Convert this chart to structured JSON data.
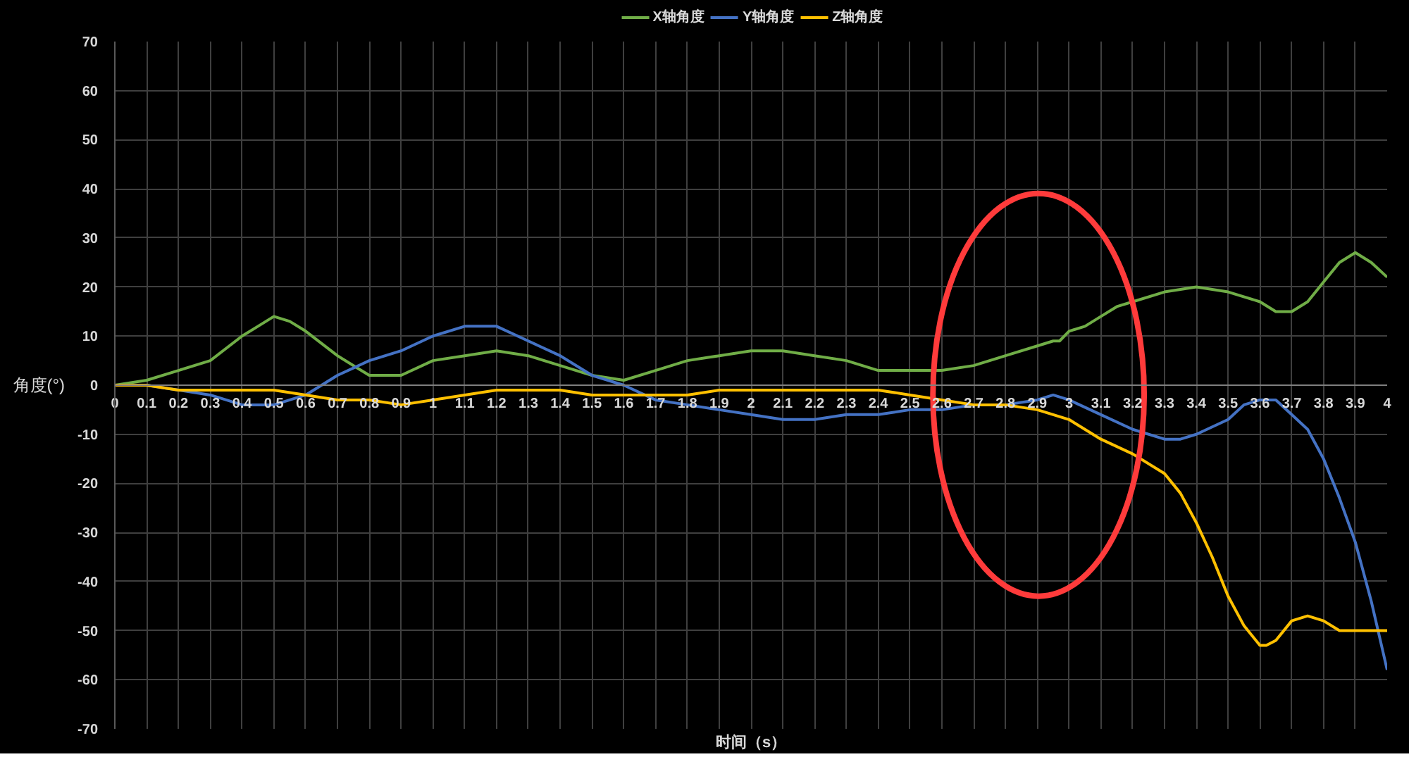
{
  "chart_data": {
    "type": "line",
    "xlabel": "时间（s）",
    "ylabel": "角度(°)",
    "xlim": [
      0,
      4
    ],
    "ylim": [
      -70,
      70
    ],
    "xticks": [
      0,
      0.1,
      0.2,
      0.3,
      0.4,
      0.5,
      0.6,
      0.7,
      0.8,
      0.9,
      1,
      1.1,
      1.2,
      1.3,
      1.4,
      1.5,
      1.6,
      1.7,
      1.8,
      1.9,
      2,
      2.1,
      2.2,
      2.3,
      2.4,
      2.5,
      2.6,
      2.7,
      2.8,
      2.9,
      3,
      3.1,
      3.2,
      3.3,
      3.4,
      3.5,
      3.6,
      3.7,
      3.8,
      3.9,
      4
    ],
    "yticks": [
      -70,
      -60,
      -50,
      -40,
      -30,
      -20,
      -10,
      0,
      10,
      20,
      30,
      40,
      50,
      60,
      70
    ],
    "grid": true,
    "legend": "top",
    "marker": "none",
    "line_style": "solid",
    "series": [
      {
        "name": "X轴角度",
        "color": "#70ad47",
        "x": [
          0,
          0.1,
          0.2,
          0.3,
          0.4,
          0.45,
          0.5,
          0.55,
          0.6,
          0.7,
          0.8,
          0.9,
          1,
          1.1,
          1.2,
          1.3,
          1.4,
          1.5,
          1.6,
          1.7,
          1.8,
          1.9,
          2,
          2.1,
          2.2,
          2.3,
          2.4,
          2.5,
          2.6,
          2.7,
          2.8,
          2.9,
          2.95,
          2.97,
          3,
          3.05,
          3.1,
          3.15,
          3.2,
          3.3,
          3.4,
          3.5,
          3.6,
          3.65,
          3.7,
          3.75,
          3.8,
          3.85,
          3.9,
          3.95,
          4
        ],
        "values": [
          0,
          1,
          3,
          5,
          10,
          12,
          14,
          13,
          11,
          6,
          2,
          2,
          5,
          6,
          7,
          6,
          4,
          2,
          1,
          3,
          5,
          6,
          7,
          7,
          6,
          5,
          3,
          3,
          3,
          4,
          6,
          8,
          9,
          9,
          11,
          12,
          14,
          16,
          17,
          19,
          20,
          19,
          17,
          15,
          15,
          17,
          21,
          25,
          27,
          25,
          22
        ]
      },
      {
        "name": "Y轴角度",
        "color": "#4472c4",
        "x": [
          0,
          0.1,
          0.2,
          0.3,
          0.4,
          0.5,
          0.6,
          0.7,
          0.8,
          0.9,
          1,
          1.1,
          1.15,
          1.2,
          1.3,
          1.4,
          1.5,
          1.6,
          1.7,
          1.8,
          1.9,
          2,
          2.1,
          2.2,
          2.3,
          2.4,
          2.5,
          2.6,
          2.7,
          2.8,
          2.9,
          2.95,
          3,
          3.1,
          3.2,
          3.3,
          3.35,
          3.4,
          3.5,
          3.55,
          3.6,
          3.65,
          3.7,
          3.75,
          3.8,
          3.85,
          3.9,
          3.95,
          4
        ],
        "values": [
          0,
          0,
          -1,
          -2,
          -4,
          -4,
          -2,
          2,
          5,
          7,
          10,
          12,
          12,
          12,
          9,
          6,
          2,
          0,
          -3,
          -4,
          -5,
          -6,
          -7,
          -7,
          -6,
          -6,
          -5,
          -5,
          -4,
          -4,
          -3,
          -2,
          -3,
          -6,
          -9,
          -11,
          -11,
          -10,
          -7,
          -4,
          -3,
          -3,
          -6,
          -9,
          -15,
          -23,
          -32,
          -44,
          -58
        ]
      },
      {
        "name": "Z轴角度",
        "color": "#ffc000",
        "x": [
          0,
          0.1,
          0.2,
          0.3,
          0.4,
          0.5,
          0.6,
          0.7,
          0.8,
          0.9,
          1,
          1.1,
          1.2,
          1.3,
          1.4,
          1.5,
          1.6,
          1.7,
          1.8,
          1.9,
          2,
          2.1,
          2.2,
          2.3,
          2.4,
          2.5,
          2.6,
          2.7,
          2.8,
          2.9,
          3,
          3.1,
          3.2,
          3.3,
          3.35,
          3.4,
          3.45,
          3.5,
          3.55,
          3.6,
          3.62,
          3.65,
          3.7,
          3.75,
          3.8,
          3.85,
          3.9,
          3.95,
          4
        ],
        "values": [
          0,
          0,
          -1,
          -1,
          -1,
          -1,
          -2,
          -3,
          -3,
          -4,
          -3,
          -2,
          -1,
          -1,
          -1,
          -2,
          -2,
          -2,
          -2,
          -1,
          -1,
          -1,
          -1,
          -1,
          -1,
          -2,
          -3,
          -4,
          -4,
          -5,
          -7,
          -11,
          -14,
          -18,
          -22,
          -28,
          -35,
          -43,
          -49,
          -53,
          -53,
          -52,
          -48,
          -47,
          -48,
          -50,
          -50,
          -50,
          -50
        ]
      }
    ]
  }
}
